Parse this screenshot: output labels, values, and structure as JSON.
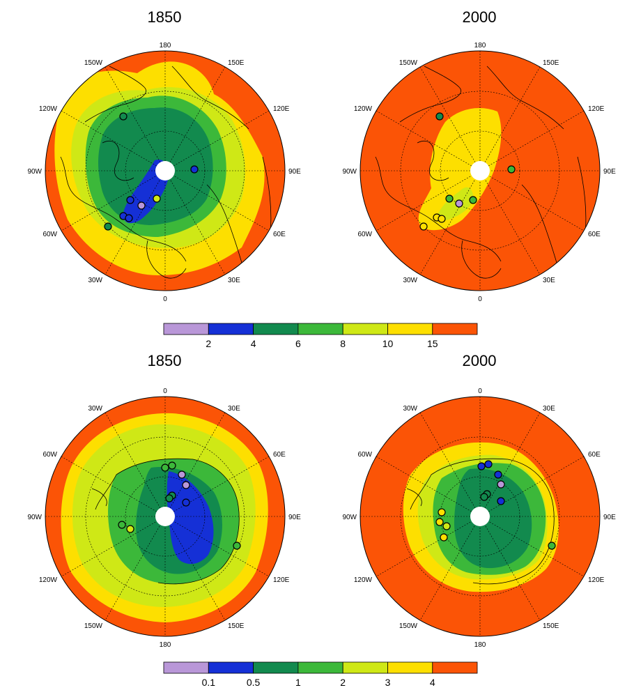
{
  "colors": {
    "purple": "#b997d8",
    "blue": "#1530d6",
    "darkgreen": "#128a4e",
    "green": "#3cb83a",
    "yellowgreen": "#cfe816",
    "yellow": "#fddf00",
    "orange": "#fb5406",
    "ocean_line": "#000000"
  },
  "top_row": {
    "left_title": "1850",
    "right_title": "2000",
    "colorbar_ticks": [
      "2",
      "4",
      "6",
      "8",
      "10",
      "15"
    ],
    "lon_labels": {
      "top": "180",
      "bottom": "0",
      "left": "90W",
      "right": "90E",
      "top_left": "150W",
      "top_right": "150E",
      "upper_left": "120W",
      "upper_right": "120E",
      "lower_left": "60W",
      "lower_right": "60E",
      "bottom_left": "30W",
      "bottom_right": "30E"
    }
  },
  "bottom_row": {
    "left_title": "1850",
    "right_title": "2000",
    "colorbar_ticks": [
      "0.1",
      "0.5",
      "1",
      "2",
      "3",
      "4"
    ],
    "lon_labels": {
      "top": "0",
      "bottom": "180",
      "left": "90W",
      "right": "90E",
      "top_left": "30W",
      "top_right": "30E",
      "upper_left": "60W",
      "upper_right": "60E",
      "lower_left": "120W",
      "lower_right": "120E",
      "bottom_left": "150W",
      "bottom_right": "150E"
    }
  }
}
